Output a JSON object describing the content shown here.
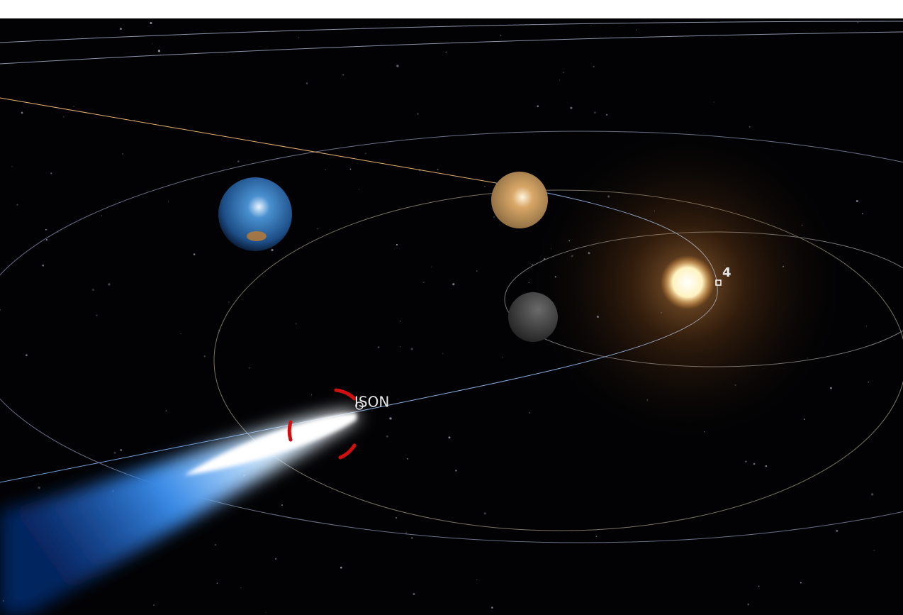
{
  "labels": {
    "comet": "ISON",
    "marker": "4"
  }
}
